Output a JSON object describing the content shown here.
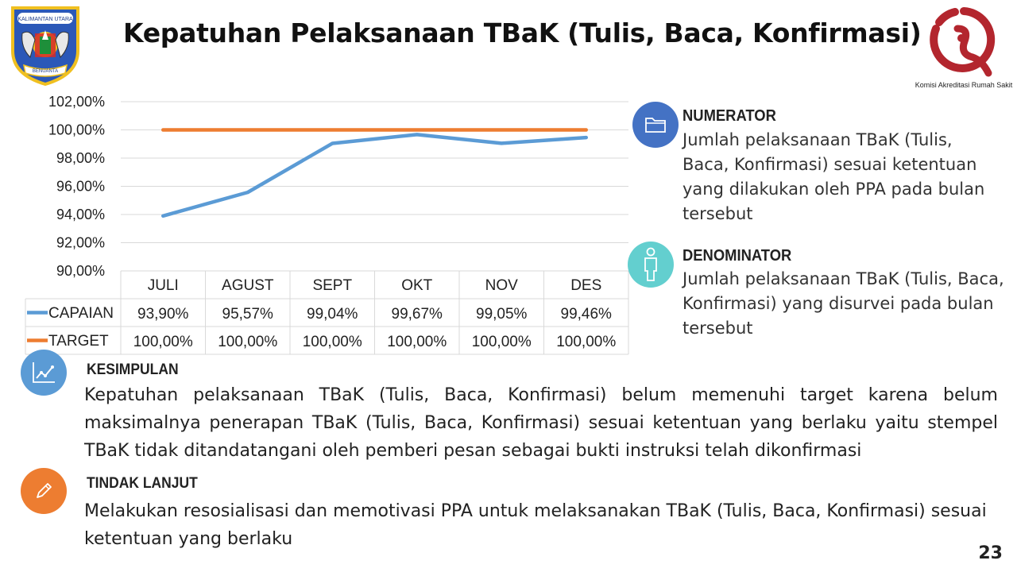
{
  "slide": {
    "title": "Kepatuhan Pelaksanaan TBaK (Tulis, Baca, Konfirmasi)",
    "page_number": "23",
    "left_logo_text": [
      "KALIMANTAN UTARA",
      "BENUANTA"
    ],
    "right_logo_text": "Komisi Akreditasi Rumah Sakit"
  },
  "chart_data": {
    "type": "line",
    "categories": [
      "JULI",
      "AGUST",
      "SEPT",
      "OKT",
      "NOV",
      "DES"
    ],
    "series": [
      {
        "name": "CAPAIAN",
        "color": "#5b9bd5",
        "values": [
          93.9,
          95.57,
          99.04,
          99.67,
          99.05,
          99.46
        ],
        "labels": [
          "93,90%",
          "95,57%",
          "99,04%",
          "99,67%",
          "99,05%",
          "99,46%"
        ]
      },
      {
        "name": "TARGET",
        "color": "#ed7d31",
        "values": [
          100,
          100,
          100,
          100,
          100,
          100
        ],
        "labels": [
          "100,00%",
          "100,00%",
          "100,00%",
          "100,00%",
          "100,00%",
          "100,00%"
        ]
      }
    ],
    "y_ticks": [
      "102,00%",
      "100,00%",
      "98,00%",
      "96,00%",
      "94,00%",
      "92,00%",
      "90,00%"
    ],
    "ylim": [
      90,
      102
    ],
    "grid": true,
    "data_table": true
  },
  "numerator": {
    "heading": "NUMERATOR",
    "text": "Jumlah pelaksanaan TBaK (Tulis, Baca, Konfirmasi) sesuai ketentuan yang dilakukan oleh PPA pada bulan tersebut",
    "icon": "folder-icon",
    "color": "#4472c4"
  },
  "denominator": {
    "heading": "DENOMINATOR",
    "text": "Jumlah pelaksanaan TBaK (Tulis, Baca, Konfirmasi) yang disurvei pada bulan tersebut",
    "icon": "person-icon",
    "color": "#5cc8c8"
  },
  "kesimpulan": {
    "heading": "KESIMPULAN",
    "text": "Kepatuhan pelaksanaan TBaK (Tulis, Baca, Konfirmasi) belum memenuhi target karena belum maksimalnya penerapan TBaK (Tulis, Baca, Konfirmasi) sesuai ketentuan yang berlaku yaitu stempel TBaK tidak ditandatangani oleh pemberi pesan sebagai bukti instruksi telah dikonfirmasi",
    "icon": "line-chart-icon",
    "color": "#5b9bd5"
  },
  "tindak_lanjut": {
    "heading": "TINDAK LANJUT",
    "text": "Melakukan resosialisasi dan memotivasi PPA untuk melaksanakan TBaK (Tulis, Baca, Konfirmasi) sesuai ketentuan yang berlaku",
    "icon": "pencil-icon",
    "color": "#ed7d31"
  }
}
